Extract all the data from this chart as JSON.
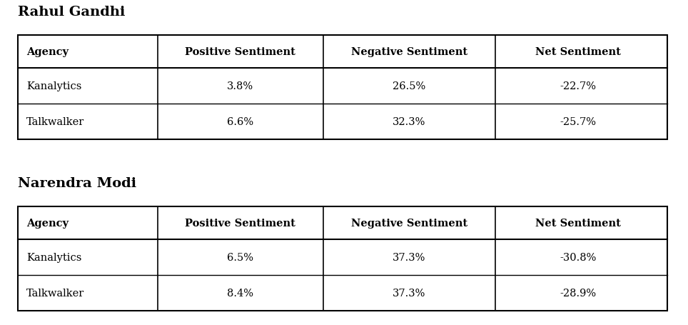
{
  "title1": "Rahul Gandhi",
  "title2": "Narendra Modi",
  "columns": [
    "Agency",
    "Positive Sentiment",
    "Negative Sentiment",
    "Net Sentiment"
  ],
  "table1": [
    [
      "Kanalytics",
      "3.8%",
      "26.5%",
      "-22.7%"
    ],
    [
      "Talkwalker",
      "6.6%",
      "32.3%",
      "-25.7%"
    ]
  ],
  "table2": [
    [
      "Kanalytics",
      "6.5%",
      "37.3%",
      "-30.8%"
    ],
    [
      "Talkwalker",
      "8.4%",
      "37.3%",
      "-28.9%"
    ]
  ],
  "bg_color": "#ffffff",
  "border_color": "#000000",
  "text_color": "#000000",
  "title_fontsize": 14,
  "header_fontsize": 10.5,
  "cell_fontsize": 10.5
}
